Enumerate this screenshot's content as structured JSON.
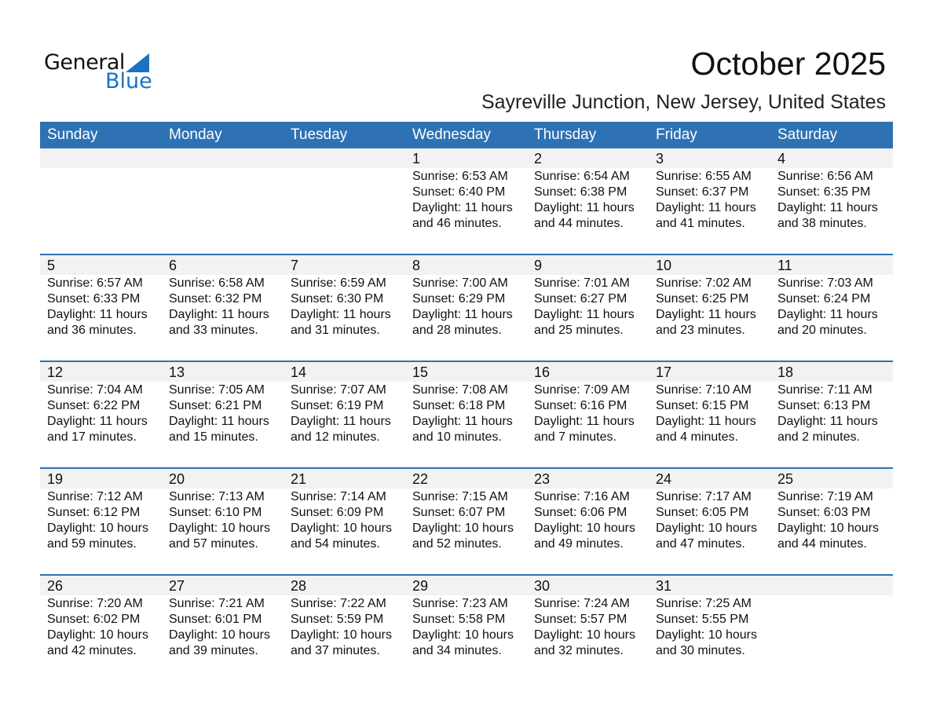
{
  "logo": {
    "text1": "General",
    "text2": "Blue"
  },
  "header": {
    "title": "October 2025",
    "subtitle": "Sayreville Junction, New Jersey, United States"
  },
  "colors": {
    "accent": "#2e72b4",
    "strip": "#f2f2f2",
    "logo_blue": "#1a73c0"
  },
  "days": [
    "Sunday",
    "Monday",
    "Tuesday",
    "Wednesday",
    "Thursday",
    "Friday",
    "Saturday"
  ],
  "weeks": [
    [
      null,
      null,
      null,
      {
        "day": "1",
        "sunrise": "Sunrise: 6:53 AM",
        "sunset": "Sunset: 6:40 PM",
        "daylight1": "Daylight: 11 hours",
        "daylight2": "and 46 minutes."
      },
      {
        "day": "2",
        "sunrise": "Sunrise: 6:54 AM",
        "sunset": "Sunset: 6:38 PM",
        "daylight1": "Daylight: 11 hours",
        "daylight2": "and 44 minutes."
      },
      {
        "day": "3",
        "sunrise": "Sunrise: 6:55 AM",
        "sunset": "Sunset: 6:37 PM",
        "daylight1": "Daylight: 11 hours",
        "daylight2": "and 41 minutes."
      },
      {
        "day": "4",
        "sunrise": "Sunrise: 6:56 AM",
        "sunset": "Sunset: 6:35 PM",
        "daylight1": "Daylight: 11 hours",
        "daylight2": "and 38 minutes."
      }
    ],
    [
      {
        "day": "5",
        "sunrise": "Sunrise: 6:57 AM",
        "sunset": "Sunset: 6:33 PM",
        "daylight1": "Daylight: 11 hours",
        "daylight2": "and 36 minutes."
      },
      {
        "day": "6",
        "sunrise": "Sunrise: 6:58 AM",
        "sunset": "Sunset: 6:32 PM",
        "daylight1": "Daylight: 11 hours",
        "daylight2": "and 33 minutes."
      },
      {
        "day": "7",
        "sunrise": "Sunrise: 6:59 AM",
        "sunset": "Sunset: 6:30 PM",
        "daylight1": "Daylight: 11 hours",
        "daylight2": "and 31 minutes."
      },
      {
        "day": "8",
        "sunrise": "Sunrise: 7:00 AM",
        "sunset": "Sunset: 6:29 PM",
        "daylight1": "Daylight: 11 hours",
        "daylight2": "and 28 minutes."
      },
      {
        "day": "9",
        "sunrise": "Sunrise: 7:01 AM",
        "sunset": "Sunset: 6:27 PM",
        "daylight1": "Daylight: 11 hours",
        "daylight2": "and 25 minutes."
      },
      {
        "day": "10",
        "sunrise": "Sunrise: 7:02 AM",
        "sunset": "Sunset: 6:25 PM",
        "daylight1": "Daylight: 11 hours",
        "daylight2": "and 23 minutes."
      },
      {
        "day": "11",
        "sunrise": "Sunrise: 7:03 AM",
        "sunset": "Sunset: 6:24 PM",
        "daylight1": "Daylight: 11 hours",
        "daylight2": "and 20 minutes."
      }
    ],
    [
      {
        "day": "12",
        "sunrise": "Sunrise: 7:04 AM",
        "sunset": "Sunset: 6:22 PM",
        "daylight1": "Daylight: 11 hours",
        "daylight2": "and 17 minutes."
      },
      {
        "day": "13",
        "sunrise": "Sunrise: 7:05 AM",
        "sunset": "Sunset: 6:21 PM",
        "daylight1": "Daylight: 11 hours",
        "daylight2": "and 15 minutes."
      },
      {
        "day": "14",
        "sunrise": "Sunrise: 7:07 AM",
        "sunset": "Sunset: 6:19 PM",
        "daylight1": "Daylight: 11 hours",
        "daylight2": "and 12 minutes."
      },
      {
        "day": "15",
        "sunrise": "Sunrise: 7:08 AM",
        "sunset": "Sunset: 6:18 PM",
        "daylight1": "Daylight: 11 hours",
        "daylight2": "and 10 minutes."
      },
      {
        "day": "16",
        "sunrise": "Sunrise: 7:09 AM",
        "sunset": "Sunset: 6:16 PM",
        "daylight1": "Daylight: 11 hours",
        "daylight2": "and 7 minutes."
      },
      {
        "day": "17",
        "sunrise": "Sunrise: 7:10 AM",
        "sunset": "Sunset: 6:15 PM",
        "daylight1": "Daylight: 11 hours",
        "daylight2": "and 4 minutes."
      },
      {
        "day": "18",
        "sunrise": "Sunrise: 7:11 AM",
        "sunset": "Sunset: 6:13 PM",
        "daylight1": "Daylight: 11 hours",
        "daylight2": "and 2 minutes."
      }
    ],
    [
      {
        "day": "19",
        "sunrise": "Sunrise: 7:12 AM",
        "sunset": "Sunset: 6:12 PM",
        "daylight1": "Daylight: 10 hours",
        "daylight2": "and 59 minutes."
      },
      {
        "day": "20",
        "sunrise": "Sunrise: 7:13 AM",
        "sunset": "Sunset: 6:10 PM",
        "daylight1": "Daylight: 10 hours",
        "daylight2": "and 57 minutes."
      },
      {
        "day": "21",
        "sunrise": "Sunrise: 7:14 AM",
        "sunset": "Sunset: 6:09 PM",
        "daylight1": "Daylight: 10 hours",
        "daylight2": "and 54 minutes."
      },
      {
        "day": "22",
        "sunrise": "Sunrise: 7:15 AM",
        "sunset": "Sunset: 6:07 PM",
        "daylight1": "Daylight: 10 hours",
        "daylight2": "and 52 minutes."
      },
      {
        "day": "23",
        "sunrise": "Sunrise: 7:16 AM",
        "sunset": "Sunset: 6:06 PM",
        "daylight1": "Daylight: 10 hours",
        "daylight2": "and 49 minutes."
      },
      {
        "day": "24",
        "sunrise": "Sunrise: 7:17 AM",
        "sunset": "Sunset: 6:05 PM",
        "daylight1": "Daylight: 10 hours",
        "daylight2": "and 47 minutes."
      },
      {
        "day": "25",
        "sunrise": "Sunrise: 7:19 AM",
        "sunset": "Sunset: 6:03 PM",
        "daylight1": "Daylight: 10 hours",
        "daylight2": "and 44 minutes."
      }
    ],
    [
      {
        "day": "26",
        "sunrise": "Sunrise: 7:20 AM",
        "sunset": "Sunset: 6:02 PM",
        "daylight1": "Daylight: 10 hours",
        "daylight2": "and 42 minutes."
      },
      {
        "day": "27",
        "sunrise": "Sunrise: 7:21 AM",
        "sunset": "Sunset: 6:01 PM",
        "daylight1": "Daylight: 10 hours",
        "daylight2": "and 39 minutes."
      },
      {
        "day": "28",
        "sunrise": "Sunrise: 7:22 AM",
        "sunset": "Sunset: 5:59 PM",
        "daylight1": "Daylight: 10 hours",
        "daylight2": "and 37 minutes."
      },
      {
        "day": "29",
        "sunrise": "Sunrise: 7:23 AM",
        "sunset": "Sunset: 5:58 PM",
        "daylight1": "Daylight: 10 hours",
        "daylight2": "and 34 minutes."
      },
      {
        "day": "30",
        "sunrise": "Sunrise: 7:24 AM",
        "sunset": "Sunset: 5:57 PM",
        "daylight1": "Daylight: 10 hours",
        "daylight2": "and 32 minutes."
      },
      {
        "day": "31",
        "sunrise": "Sunrise: 7:25 AM",
        "sunset": "Sunset: 5:55 PM",
        "daylight1": "Daylight: 10 hours",
        "daylight2": "and 30 minutes."
      },
      null
    ]
  ]
}
